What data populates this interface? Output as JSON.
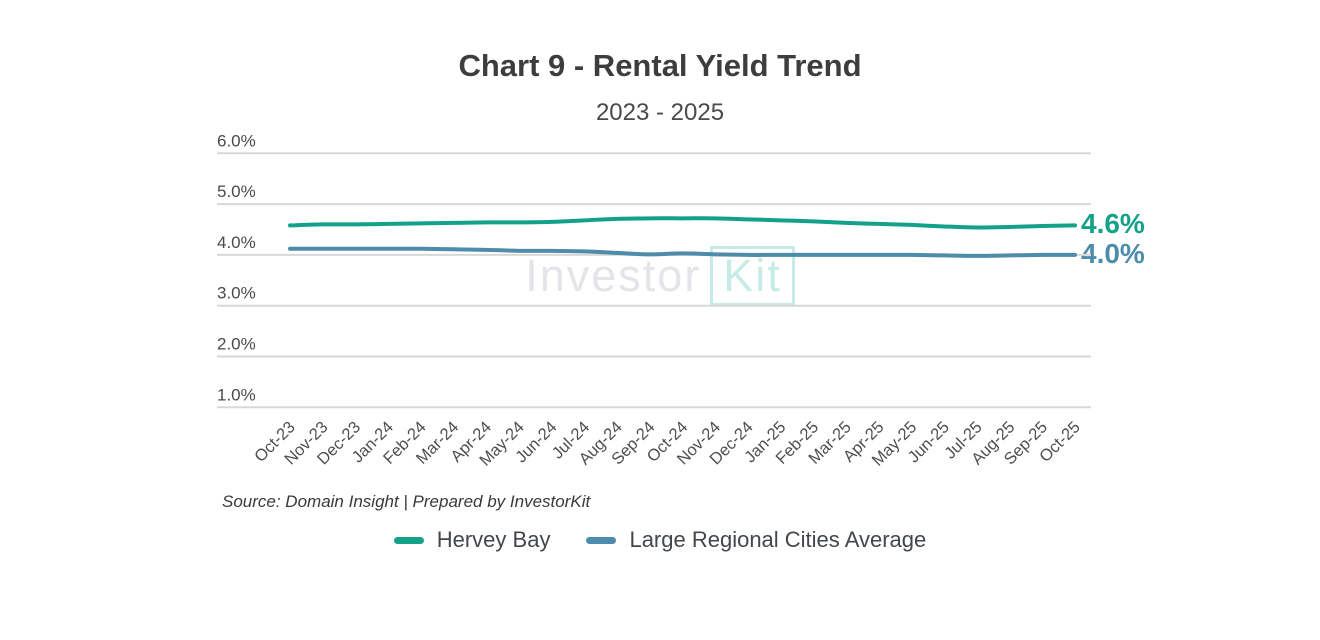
{
  "header": {
    "title": "Chart 9 - Rental Yield Trend",
    "subtitle": "2023 - 2025"
  },
  "watermark": {
    "part1": "Investor",
    "part2": "Kit"
  },
  "footer": {
    "source": "Source: Domain Insight | Prepared by InvestorKit"
  },
  "chart_data": {
    "type": "line",
    "title": "Chart 9 - Rental Yield Trend",
    "subtitle": "2023 - 2025",
    "xlabel": "",
    "ylabel": "",
    "ylim": [
      1.0,
      6.0
    ],
    "grid": true,
    "legend_position": "bottom",
    "gridline_color": "#d8d8d8",
    "categories": [
      "Oct-23",
      "Nov-23",
      "Dec-23",
      "Jan-24",
      "Feb-24",
      "Mar-24",
      "Apr-24",
      "May-24",
      "Jun-24",
      "Jul-24",
      "Aug-24",
      "Sep-24",
      "Oct-24",
      "Nov-24",
      "Dec-24",
      "Jan-25",
      "Feb-25",
      "Mar-25",
      "Apr-25",
      "May-25",
      "Jun-25",
      "Jul-25",
      "Aug-25",
      "Sep-25",
      "Oct-25"
    ],
    "y_ticks": [
      "6.0%",
      "5.0%",
      "4.0%",
      "3.0%",
      "2.0%",
      "1.0%"
    ],
    "y_tick_values": [
      6.0,
      5.0,
      4.0,
      3.0,
      2.0,
      1.0
    ],
    "series": [
      {
        "name": "Hervey Bay",
        "color": "#13a289",
        "end_label": "4.6%",
        "values": [
          4.58,
          4.6,
          4.6,
          4.61,
          4.62,
          4.63,
          4.64,
          4.64,
          4.65,
          4.68,
          4.71,
          4.72,
          4.72,
          4.72,
          4.7,
          4.68,
          4.66,
          4.63,
          4.61,
          4.59,
          4.56,
          4.54,
          4.55,
          4.57,
          4.58
        ]
      },
      {
        "name": "Large Regional Cities Average",
        "color": "#4d8cab",
        "end_label": "4.0%",
        "values": [
          4.12,
          4.12,
          4.12,
          4.12,
          4.12,
          4.11,
          4.1,
          4.08,
          4.08,
          4.07,
          4.04,
          4.01,
          4.03,
          4.01,
          4.0,
          4.0,
          4.0,
          4.0,
          4.0,
          4.0,
          3.99,
          3.98,
          3.99,
          4.0,
          4.0
        ]
      }
    ]
  }
}
